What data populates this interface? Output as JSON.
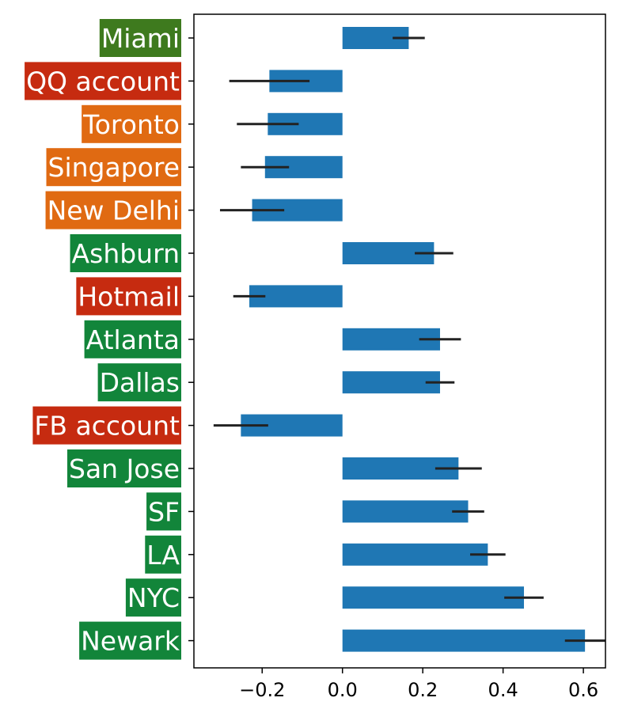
{
  "chart_data": {
    "type": "bar",
    "orientation": "horizontal",
    "categories": [
      "Miami",
      "QQ account",
      "Toronto",
      "Singapore",
      "New Delhi",
      "Ashburn",
      "Hotmail",
      "Atlanta",
      "Dallas",
      "FB account",
      "San Jose",
      "SF",
      "LA",
      "NYC",
      "Newark"
    ],
    "values": [
      0.165,
      -0.182,
      -0.186,
      -0.193,
      -0.225,
      0.228,
      -0.232,
      0.243,
      0.243,
      -0.253,
      0.289,
      0.313,
      0.362,
      0.452,
      0.604
    ],
    "error": [
      0.04,
      0.1,
      0.077,
      0.06,
      0.08,
      0.048,
      0.04,
      0.052,
      0.036,
      0.068,
      0.058,
      0.04,
      0.044,
      0.049,
      0.05
    ],
    "label_groups": [
      "darkgreen",
      "red",
      "orange",
      "orange",
      "orange",
      "green",
      "red",
      "green",
      "green",
      "red",
      "green",
      "green",
      "green",
      "green",
      "green"
    ],
    "xticks": [
      -0.2,
      0.0,
      0.2,
      0.4,
      0.6
    ],
    "xtick_labels": [
      "−0.2",
      "0.0",
      "0.2",
      "0.4",
      "0.6"
    ],
    "xlim": [
      -0.37,
      0.655
    ],
    "title": "",
    "xlabel": "",
    "ylabel": "",
    "grid": false,
    "legend": "none"
  },
  "colors": {
    "bar": "#1f77b4",
    "error_bar": "#222222",
    "darkgreen": "#3e7a1e",
    "green": "#12853a",
    "orange": "#e06a12",
    "red": "#c62b10"
  }
}
